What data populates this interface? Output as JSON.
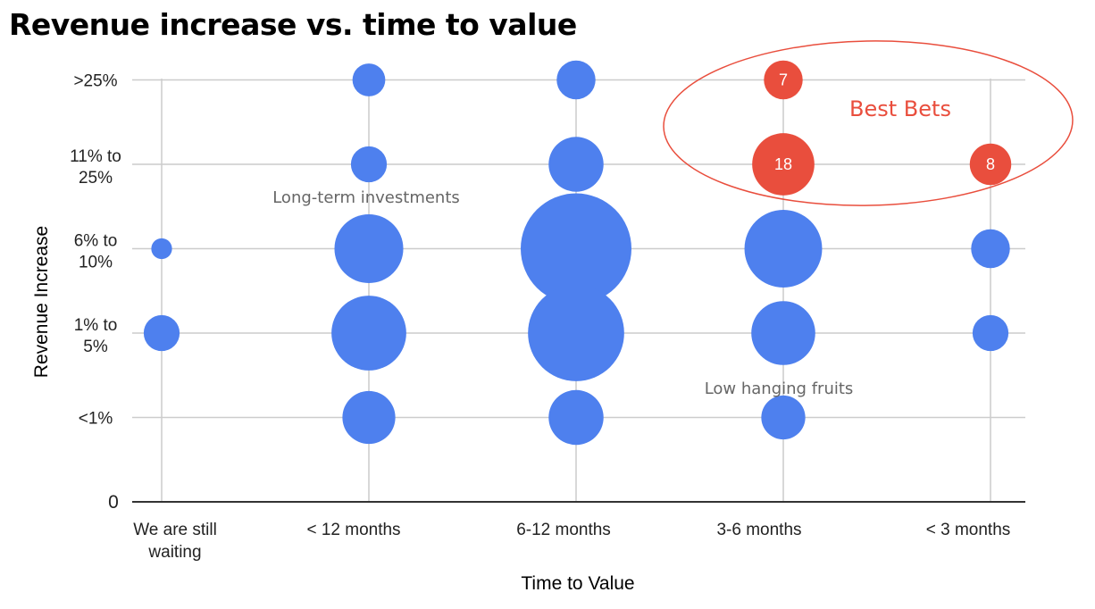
{
  "chart_data": {
    "type": "bubble",
    "title": "Revenue increase vs. time to value",
    "xlabel": "Time to Value",
    "ylabel": "Revenue Increase",
    "x_categories": [
      "We are still waiting",
      "< 12 months",
      "6-12 months",
      "3-6 months",
      "< 3 months"
    ],
    "x_tick_lines": [
      [
        "We are still",
        "waiting"
      ],
      [
        "< 12 months"
      ],
      [
        "6-12 months"
      ],
      [
        "3-6 months"
      ],
      [
        "< 3 months"
      ]
    ],
    "y_categories": [
      "<1%",
      "1% to 5%",
      "6% to 10%",
      "11% to 25%",
      ">25%"
    ],
    "y_tick_lines": [
      [
        "0"
      ],
      [
        "<1%"
      ],
      [
        "1% to",
        "5%"
      ],
      [
        "6% to",
        "10%"
      ],
      [
        "11% to",
        "25%"
      ],
      [
        ">25%"
      ]
    ],
    "y_zero_label": "0",
    "colors": {
      "default": "#4e80ee",
      "highlight": "#e94e3d",
      "ellipse": "#e94e3d",
      "grid": "#cccccc",
      "axis": "#333333"
    },
    "points": [
      {
        "x": "We are still waiting",
        "y": "6% to 10%",
        "size": 2,
        "label": "",
        "color": "#4e80ee"
      },
      {
        "x": "We are still waiting",
        "y": "1% to 5%",
        "size": 6,
        "label": "",
        "color": "#4e80ee"
      },
      {
        "x": "< 12 months",
        "y": ">25%",
        "size": 5,
        "label": "",
        "color": "#4e80ee"
      },
      {
        "x": "< 12 months",
        "y": "11% to 25%",
        "size": 6,
        "label": "",
        "color": "#4e80ee"
      },
      {
        "x": "< 12 months",
        "y": "6% to 10%",
        "size": 22,
        "label": "",
        "color": "#4e80ee"
      },
      {
        "x": "< 12 months",
        "y": "1% to 5%",
        "size": 26,
        "label": "",
        "color": "#4e80ee"
      },
      {
        "x": "< 12 months",
        "y": "<1%",
        "size": 13,
        "label": "",
        "color": "#4e80ee"
      },
      {
        "x": "6-12 months",
        "y": ">25%",
        "size": 7,
        "label": "",
        "color": "#4e80ee"
      },
      {
        "x": "6-12 months",
        "y": "11% to 25%",
        "size": 14,
        "label": "",
        "color": "#4e80ee"
      },
      {
        "x": "6-12 months",
        "y": "6% to 10%",
        "size": 57,
        "label": "",
        "color": "#4e80ee"
      },
      {
        "x": "6-12 months",
        "y": "1% to 5%",
        "size": 43,
        "label": "",
        "color": "#4e80ee"
      },
      {
        "x": "6-12 months",
        "y": "<1%",
        "size": 14,
        "label": "",
        "color": "#4e80ee"
      },
      {
        "x": "3-6 months",
        "y": ">25%",
        "size": 7,
        "label": "7",
        "color": "#e94e3d"
      },
      {
        "x": "3-6 months",
        "y": "11% to 25%",
        "size": 18,
        "label": "18",
        "color": "#e94e3d"
      },
      {
        "x": "3-6 months",
        "y": "6% to 10%",
        "size": 28,
        "label": "",
        "color": "#4e80ee"
      },
      {
        "x": "3-6 months",
        "y": "1% to 5%",
        "size": 19,
        "label": "",
        "color": "#4e80ee"
      },
      {
        "x": "3-6 months",
        "y": "<1%",
        "size": 9,
        "label": "",
        "color": "#4e80ee"
      },
      {
        "x": "< 3 months",
        "y": "11% to 25%",
        "size": 8,
        "label": "8",
        "color": "#e94e3d"
      },
      {
        "x": "< 3 months",
        "y": "6% to 10%",
        "size": 7,
        "label": "",
        "color": "#4e80ee"
      },
      {
        "x": "< 3 months",
        "y": "1% to 5%",
        "size": 6,
        "label": "",
        "color": "#4e80ee"
      }
    ],
    "annotations": [
      {
        "text": "Long-term investments",
        "x": "< 12 months",
        "y": "11% to 25%"
      },
      {
        "text": "Low hanging fruits",
        "x": "3-6 months",
        "y": "<1%"
      },
      {
        "text": "Best Bets",
        "x": "3-6 months",
        "y": "11% to 25%"
      }
    ],
    "grid": true,
    "legend": "none"
  }
}
